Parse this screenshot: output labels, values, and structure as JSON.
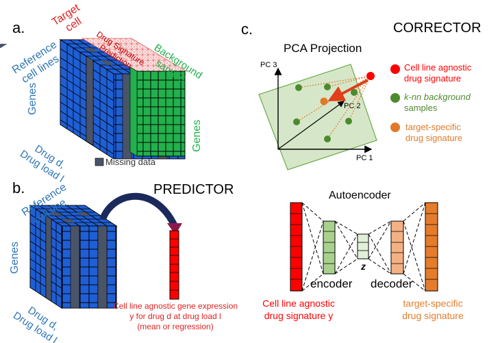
{
  "panels": {
    "a": {
      "letter": "a.",
      "reference_line1": "Reference",
      "reference_line2": "cell lines",
      "target_line1": "Target",
      "target_line2": "cell",
      "drug_sig_line1": "Drug Signature",
      "drug_sig_line2": "Prediction",
      "background_line1": "Background",
      "background_line2": "sample",
      "genes_left": "Genes",
      "genes_right": "Genes",
      "drug_line1": "Drug d,",
      "drug_line2": "Drug load l",
      "legend_missing": "Missing data"
    },
    "b": {
      "letter": "b.",
      "title": "PREDICTOR",
      "reference_line1": "Reference",
      "reference_line2": "cell line",
      "genes": "Genes",
      "drug_line1": "Drug d,",
      "drug_line2": "Drug load l",
      "output_line1": "Cell line agnostic gene expression",
      "output_line2": "y for drug d at drug load l",
      "output_line3": "(mean or regression)"
    },
    "c": {
      "letter": "c.",
      "title": "CORRECTOR",
      "pca_title": "PCA Projection",
      "pc1": "PC 1",
      "pc2": "PC 2",
      "pc3": "PC 3",
      "legend": [
        {
          "line1": "Cell line agnostic",
          "line2": "drug signature",
          "color": "#ff0000"
        },
        {
          "line1": "k-nn background",
          "line2": "samples",
          "color": "#4c8a2e"
        },
        {
          "line1": "target-specific",
          "line2": "drug signature",
          "color": "#e07a2a"
        }
      ],
      "ae_title": "Autoencoder",
      "encoder": "encoder",
      "decoder": "decoder",
      "z": "z",
      "input_line1": "Cell line agnostic",
      "input_line2": "drug signature y",
      "output_line1": "target-specific",
      "output_line2": "drug signature"
    }
  },
  "colors": {
    "cube_blue": "#1f5fd6",
    "missing_gray": "#4a5468",
    "background_green": "#22b14c",
    "red": "#ff0000",
    "orange": "#e57c2c",
    "light_green": "#a9d18e",
    "light_orange": "#f4b183",
    "text_blue": "#2e75b6",
    "text_green": "#22b14c"
  }
}
